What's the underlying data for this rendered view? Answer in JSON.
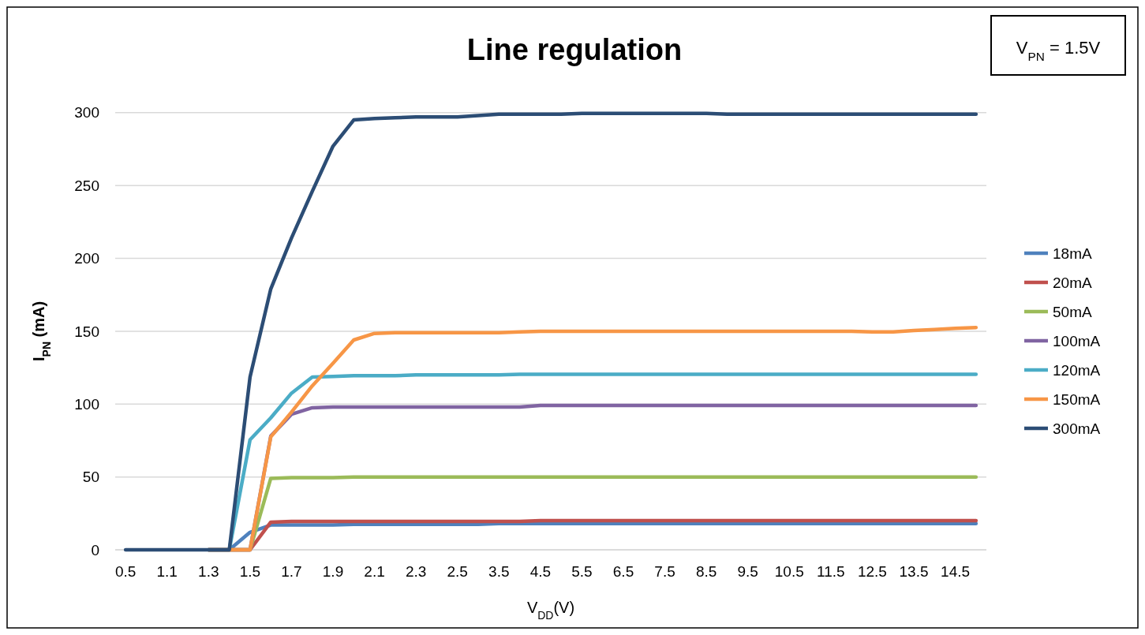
{
  "chart_data": {
    "type": "line",
    "title": "Line regulation",
    "xlabel": "V$_{DD}$(V)",
    "ylabel": "I$_{PN}$ (mA)",
    "annotations": [
      "V$_{PN}$ = 1.5V"
    ],
    "categories": [
      "0.5",
      null,
      "1.1",
      null,
      "1.3",
      null,
      "1.5",
      null,
      "1.7",
      null,
      "1.9",
      null,
      "2.1",
      null,
      "2.3",
      null,
      "2.5",
      null,
      "3.5",
      null,
      "4.5",
      null,
      "5.5",
      null,
      "6.5",
      null,
      "7.5",
      null,
      "8.5",
      null,
      "9.5",
      null,
      "10.5",
      null,
      "11.5",
      null,
      "12.5",
      null,
      "13.5",
      null,
      "14.5",
      null
    ],
    "ylim": [
      0,
      300
    ],
    "yticks": [
      0,
      50,
      100,
      150,
      200,
      250,
      300
    ],
    "grid": "y",
    "legend": "right",
    "marker": "none",
    "line_style": "solid",
    "series": [
      {
        "name": "18mA",
        "color": "#4f81bd",
        "values": [
          null,
          null,
          null,
          null,
          0,
          0,
          12,
          17,
          17,
          17,
          17,
          17.5,
          17.5,
          17.5,
          17.5,
          17.5,
          17.5,
          17.5,
          18,
          18,
          18,
          18,
          18,
          18,
          18,
          18,
          18,
          18,
          18,
          18,
          18,
          18,
          18,
          18,
          18,
          18,
          18,
          18,
          18,
          18,
          18,
          18
        ]
      },
      {
        "name": "20mA",
        "color": "#c0504d",
        "values": [
          null,
          null,
          null,
          null,
          0,
          0,
          0,
          19,
          19.5,
          19.5,
          19.5,
          19.5,
          19.5,
          19.5,
          19.5,
          19.5,
          19.5,
          19.5,
          19.5,
          19.5,
          20,
          20,
          20,
          20,
          20,
          20,
          20,
          20,
          20,
          20,
          20,
          20,
          20,
          20,
          20,
          20,
          20,
          20,
          20,
          20,
          20,
          20
        ]
      },
      {
        "name": "50mA",
        "color": "#9bbb59",
        "values": [
          null,
          null,
          null,
          null,
          0,
          0,
          0,
          49,
          49.5,
          49.5,
          49.5,
          50,
          50,
          50,
          50,
          50,
          50,
          50,
          50,
          50,
          50,
          50,
          50,
          50,
          50,
          50,
          50,
          50,
          50,
          50,
          50,
          50,
          50,
          50,
          50,
          50,
          50,
          50,
          50,
          50,
          50,
          50
        ]
      },
      {
        "name": "100mA",
        "color": "#8064a2",
        "values": [
          null,
          null,
          null,
          null,
          0,
          0,
          0,
          78,
          93,
          97.5,
          98,
          98,
          98,
          98,
          98,
          98,
          98,
          98,
          98,
          98,
          99,
          99,
          99,
          99,
          99,
          99,
          99,
          99,
          99,
          99,
          99,
          99,
          99,
          99,
          99,
          99,
          99,
          99,
          99,
          99,
          99,
          99
        ]
      },
      {
        "name": "120mA",
        "color": "#4bacc6",
        "values": [
          null,
          null,
          null,
          null,
          0,
          0,
          75.5,
          90.5,
          107.5,
          118.5,
          119,
          119.5,
          119.5,
          119.5,
          120,
          120,
          120,
          120,
          120,
          120.5,
          120.5,
          120.5,
          120.5,
          120.5,
          120.5,
          120.5,
          120.5,
          120.5,
          120.5,
          120.5,
          120.5,
          120.5,
          120.5,
          120.5,
          120.5,
          120.5,
          120.5,
          120.5,
          120.5,
          120.5,
          120.5,
          120.5
        ]
      },
      {
        "name": "150mA",
        "color": "#f79646",
        "values": [
          null,
          null,
          null,
          null,
          0,
          0,
          0,
          77.5,
          94.5,
          112.5,
          128,
          144,
          148.5,
          149,
          149,
          149,
          149,
          149,
          149,
          149.5,
          150,
          150,
          150,
          150,
          150,
          150,
          150,
          150,
          150,
          150,
          150,
          150,
          150,
          150,
          150,
          150,
          149.5,
          149.5,
          150.5,
          151.2,
          152,
          152.5
        ]
      },
      {
        "name": "300mA",
        "color": "#2c4d75",
        "values": [
          0,
          0,
          0,
          0,
          0,
          0,
          118.5,
          179,
          214,
          246,
          277,
          295,
          296,
          296.5,
          297,
          297,
          297,
          298,
          299,
          299,
          299,
          299,
          299.5,
          299.5,
          299.5,
          299.5,
          299.5,
          299.5,
          299.5,
          299,
          299,
          299,
          299,
          299,
          299,
          299,
          299,
          299,
          299,
          299,
          299,
          299
        ]
      }
    ]
  }
}
